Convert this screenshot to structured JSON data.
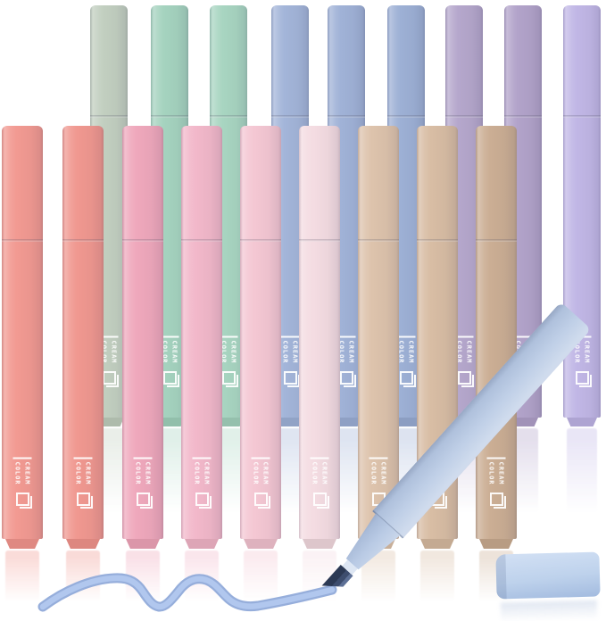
{
  "product": {
    "brand_line1": "CREAM",
    "brand_line2": "COLOR"
  },
  "back_row_pens": [
    {
      "name": "sage-green",
      "color": "#c2cfc0"
    },
    {
      "name": "mint-green",
      "color": "#a5d3bf"
    },
    {
      "name": "mint-green-2",
      "color": "#a8d5c1"
    },
    {
      "name": "periwinkle-blue",
      "color": "#a3b5d9"
    },
    {
      "name": "periwinkle-blue-2",
      "color": "#a0b2d7"
    },
    {
      "name": "periwinkle-blue-3",
      "color": "#9db0d5"
    },
    {
      "name": "mauve-purple",
      "color": "#b5a7cc"
    },
    {
      "name": "mauve-purple-2",
      "color": "#b2a3ca"
    },
    {
      "name": "light-lavender",
      "color": "#c1b7e6"
    }
  ],
  "front_row_pens": [
    {
      "name": "coral",
      "color": "#f29a92"
    },
    {
      "name": "coral-2",
      "color": "#f09890"
    },
    {
      "name": "rose-pink",
      "color": "#efa8bc"
    },
    {
      "name": "pink",
      "color": "#f2b8ca"
    },
    {
      "name": "light-pink",
      "color": "#f4c7d3"
    },
    {
      "name": "pale-pink",
      "color": "#f4dce2"
    },
    {
      "name": "beige",
      "color": "#ddc3ac"
    },
    {
      "name": "tan",
      "color": "#d8bda4"
    },
    {
      "name": "mocha",
      "color": "#cbae94"
    }
  ],
  "diagonal_pen": {
    "name": "powder-blue-highlighter",
    "body_color": "#b7c9e4",
    "nose_color": "#b2c5e2",
    "collar_color": "#dde6f3",
    "tip_color": "#2c3954"
  },
  "floor_cap": {
    "name": "powder-blue-cap",
    "color": "#bed2ec"
  },
  "ink_squiggle": {
    "edge_color": "#96aedb",
    "core_color": "#b1c7ee"
  }
}
